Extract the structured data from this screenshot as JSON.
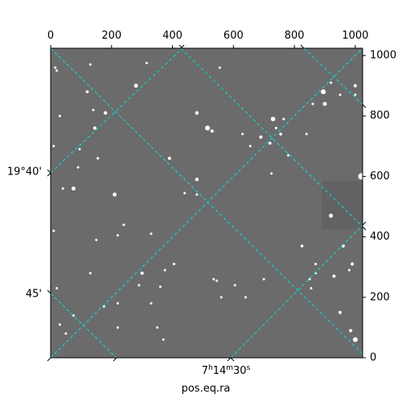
{
  "chart_data": {
    "type": "scatter",
    "title": "",
    "xlabel": "pos.eq.ra",
    "ylabel": "",
    "pixel_axes": {
      "x_ticks": [
        "0",
        "200",
        "400",
        "600",
        "800",
        "1000"
      ],
      "x_tick_values": [
        0,
        200,
        400,
        600,
        800,
        1000
      ],
      "xlim": [
        0,
        1024
      ],
      "y_ticks": [
        "0",
        "200",
        "400",
        "600",
        "800",
        "1000"
      ],
      "y_tick_values": [
        0,
        200,
        400,
        600,
        800,
        1000
      ],
      "ylim": [
        0,
        1024
      ]
    },
    "world_axes": {
      "ra_label": {
        "hours": "7",
        "minutes": "14",
        "seconds": "30"
      },
      "dec_labels": [
        "19°40'",
        "45'"
      ]
    },
    "grid": true,
    "grid_color": "#00e0e0",
    "image_background": "#6b6b6b",
    "stars": {
      "x": [
        180,
        315,
        280,
        390,
        480,
        210,
        155,
        120,
        690,
        755,
        780,
        840,
        730,
        860,
        920,
        950,
        1000,
        1000,
        1020,
        480,
        555,
        515,
        530,
        630,
        655,
        720,
        825,
        850,
        960,
        920,
        870,
        480,
        440,
        375,
        330,
        240,
        220,
        145,
        140,
        130,
        95,
        90,
        15,
        20,
        30,
        10,
        75,
        40,
        10,
        130,
        150,
        220,
        290,
        350,
        370,
        405,
        535,
        725,
        740,
        765,
        895,
        900,
        990,
        330,
        360,
        545,
        560,
        605,
        640,
        700,
        870,
        855,
        930,
        980,
        300,
        220,
        175,
        75,
        50,
        30,
        20,
        1000,
        985,
        950
      ],
      "y": [
        810,
        975,
        900,
        660,
        540,
        540,
        660,
        880,
        730,
        740,
        670,
        740,
        790,
        840,
        910,
        870,
        870,
        900,
        600,
        810,
        960,
        760,
        750,
        740,
        700,
        710,
        370,
        260,
        370,
        470,
        310,
        590,
        545,
        290,
        410,
        440,
        405,
        760,
        820,
        970,
        690,
        630,
        960,
        950,
        800,
        700,
        560,
        560,
        420,
        280,
        390,
        100,
        240,
        100,
        60,
        310,
        260,
        610,
        760,
        790,
        880,
        840,
        310,
        180,
        235,
        255,
        200,
        240,
        200,
        260,
        280,
        230,
        270,
        290,
        280,
        180,
        170,
        140,
        80,
        110,
        230,
        60,
        90,
        150
      ],
      "r": [
        2.2,
        1.5,
        2.5,
        2,
        1.5,
        2.5,
        1.6,
        1.8,
        2,
        1.8,
        1.5,
        1.5,
        2.8,
        1.5,
        1.5,
        1.5,
        1.5,
        2,
        4,
        2.2,
        1.5,
        3,
        2,
        1.5,
        1.5,
        1.8,
        1.8,
        1.5,
        2,
        2.5,
        1.5,
        2.2,
        1.5,
        1.5,
        1.5,
        1.5,
        1.5,
        2,
        1.5,
        1.5,
        1.5,
        1.5,
        1.5,
        1.5,
        1.5,
        1.5,
        2.5,
        1.5,
        1.5,
        1.5,
        1.5,
        1.5,
        1.5,
        1.5,
        1.5,
        1.5,
        1.5,
        1.5,
        1.5,
        1.5,
        3,
        2.5,
        2,
        1.5,
        1.5,
        1.5,
        1.5,
        1.5,
        1.5,
        1.5,
        1.5,
        1.5,
        2,
        1.5,
        2,
        1.5,
        1.5,
        1.5,
        1.5,
        1.5,
        1.5,
        3,
        2,
        2
      ]
    }
  }
}
